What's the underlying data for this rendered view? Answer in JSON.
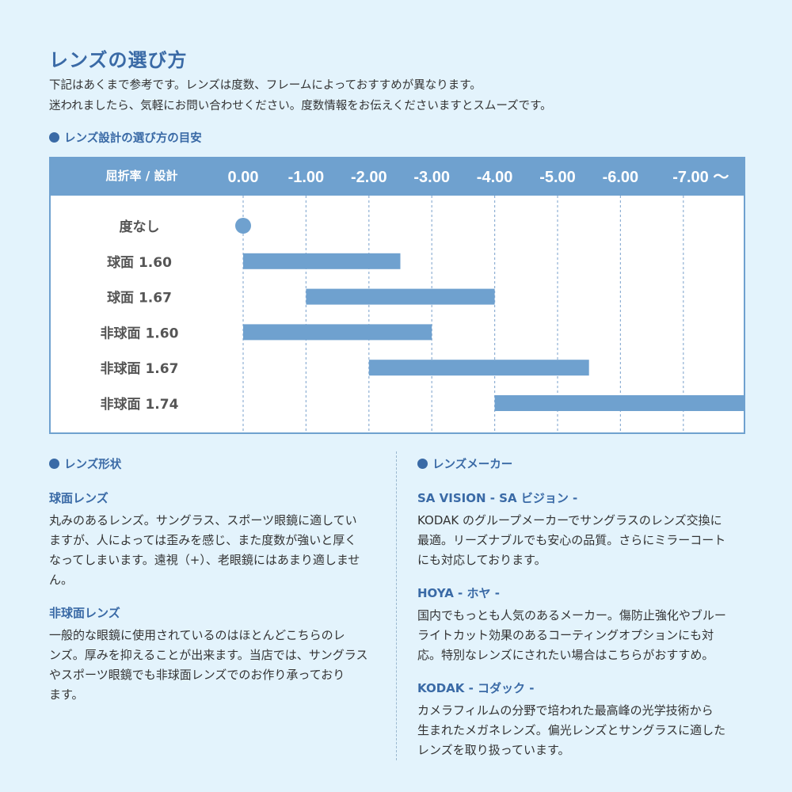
{
  "title": "レンズの選び方",
  "intro": [
    "下記はあくまで参考です。レンズは度数、フレームによっておすすめが異なります。",
    "迷われましたら、気軽にお問い合わせください。度数情報をお伝えくださいますとスムーズです。"
  ],
  "chart_section": "レンズ設計の選び方の目安",
  "chart_data": {
    "type": "bar",
    "orientation": "horizontal-range",
    "header_label": "屈折率 / 設計",
    "tick_labels": [
      "0.00",
      "-1.00",
      "-2.00",
      "-3.00",
      "-4.00",
      "-5.00",
      "-6.00",
      "-7.00 ～"
    ],
    "xlim": [
      0,
      -8
    ],
    "grid": true,
    "colors": {
      "bar": "#6fa1cf",
      "header": "#6fa1cf"
    },
    "rows": [
      {
        "label": "度なし",
        "from": 0,
        "to": 0,
        "marker": "dot"
      },
      {
        "label": "球面 1.60",
        "from": 0,
        "to": -2.5
      },
      {
        "label": "球面 1.67",
        "from": -1,
        "to": -4
      },
      {
        "label": "非球面 1.60",
        "from": 0,
        "to": -3
      },
      {
        "label": "非球面 1.67",
        "from": -2,
        "to": -5.5
      },
      {
        "label": "非球面 1.74",
        "from": -4,
        "to": -8
      }
    ]
  },
  "left": {
    "heading": "レンズ形状",
    "blocks": [
      {
        "title": "球面レンズ",
        "lines": [
          "丸みのあるレンズ。サングラス、スポーツ眼鏡に適してい",
          "ますが、人によっては歪みを感じ、また度数が強いと厚く",
          "なってしまいます。遠視（+）、老眼鏡にはあまり適しませ",
          "ん。"
        ]
      },
      {
        "title": "非球面レンズ",
        "lines": [
          "一般的な眼鏡に使用されているのはほとんどこちらのレ",
          "ンズ。厚みを抑えることが出来ます。当店では、サングラス",
          "やスポーツ眼鏡でも非球面レンズでのお作り承っており",
          "ます。"
        ]
      }
    ]
  },
  "right": {
    "heading": "レンズメーカー",
    "blocks": [
      {
        "title": "SA VISION - SA ビジョン -",
        "lines": [
          "KODAK のグループメーカーでサングラスのレンズ交換に",
          "最適。リーズナブルでも安心の品質。さらにミラーコート",
          "にも対応しております。"
        ]
      },
      {
        "title": "HOYA - ホヤ -",
        "lines": [
          "国内でもっとも人気のあるメーカー。傷防止強化やブルー",
          "ライトカット効果のあるコーティングオプションにも対",
          "応。特別なレンズにされたい場合はこちらがおすすめ。"
        ]
      },
      {
        "title": "KODAK - コダック -",
        "lines": [
          "カメラフィルムの分野で培われた最高峰の光学技術から",
          "生まれたメガネレンズ。偏光レンズとサングラスに適した",
          "レンズを取り扱っています。"
        ]
      }
    ]
  }
}
